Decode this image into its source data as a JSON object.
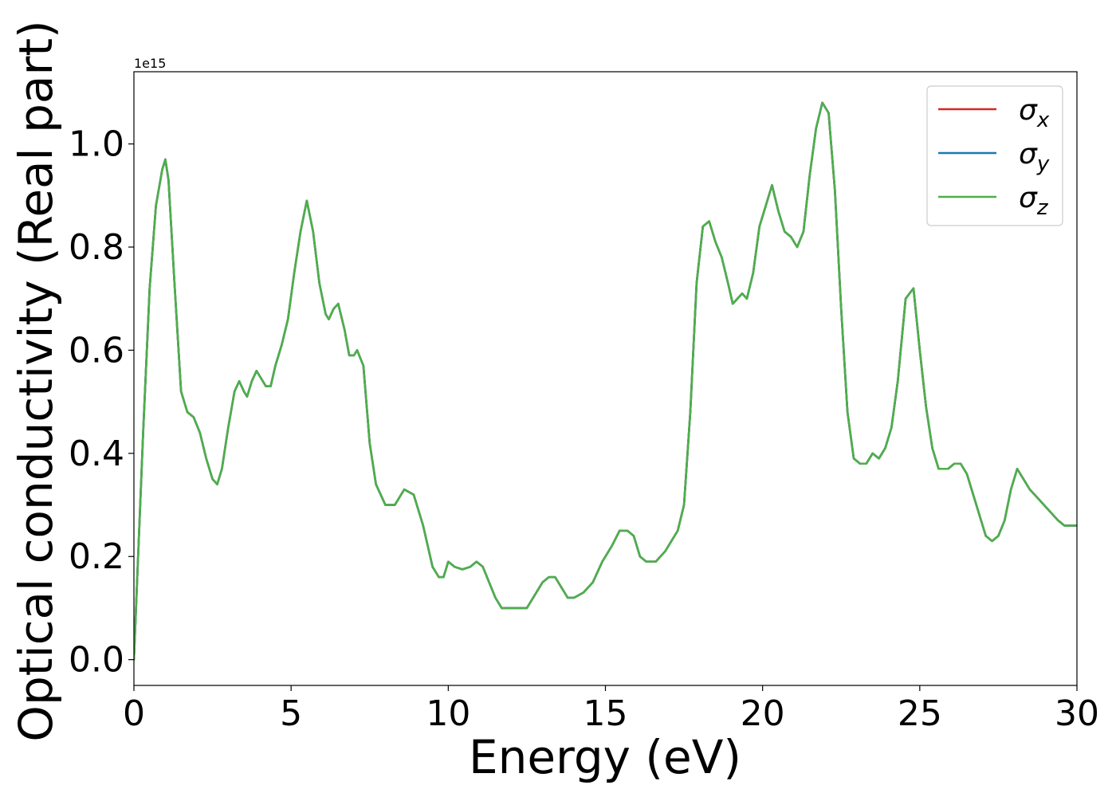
{
  "chart_data": {
    "type": "line",
    "xlabel": "Energy (eV)",
    "ylabel": "Optical conductivity (Real part)",
    "y_offset_label": "1e15",
    "xlim": [
      0,
      30
    ],
    "ylim": [
      -0.05,
      1.14
    ],
    "x_ticks": [
      0,
      5,
      10,
      15,
      20,
      25,
      30
    ],
    "x_tick_labels": [
      "0",
      "5",
      "10",
      "15",
      "20",
      "25",
      "30"
    ],
    "y_ticks": [
      0.0,
      0.2,
      0.4,
      0.6,
      0.8,
      1.0
    ],
    "y_tick_labels": [
      "0.0",
      "0.2",
      "0.4",
      "0.6",
      "0.8",
      "1.0"
    ],
    "grid": false,
    "legend_position": "top-right",
    "series": [
      {
        "name": "σ",
        "subscript": "x",
        "color": "#d62728"
      },
      {
        "name": "σ",
        "subscript": "y",
        "color": "#1f77b4"
      },
      {
        "name": "σ",
        "subscript": "z",
        "color": "#4daf4a"
      }
    ],
    "x": [
      0.0,
      0.1,
      0.3,
      0.5,
      0.7,
      0.9,
      1.0,
      1.1,
      1.3,
      1.5,
      1.7,
      1.9,
      2.1,
      2.3,
      2.5,
      2.65,
      2.8,
      3.0,
      3.2,
      3.35,
      3.5,
      3.6,
      3.75,
      3.9,
      4.0,
      4.2,
      4.35,
      4.5,
      4.7,
      4.9,
      5.1,
      5.3,
      5.5,
      5.7,
      5.9,
      6.1,
      6.2,
      6.35,
      6.5,
      6.7,
      6.85,
      7.0,
      7.1,
      7.3,
      7.5,
      7.7,
      8.0,
      8.3,
      8.6,
      8.9,
      9.2,
      9.5,
      9.7,
      9.85,
      10.0,
      10.2,
      10.45,
      10.7,
      10.9,
      11.1,
      11.3,
      11.5,
      11.7,
      11.9,
      12.2,
      12.5,
      12.8,
      13.0,
      13.2,
      13.4,
      13.6,
      13.8,
      14.0,
      14.3,
      14.6,
      14.9,
      15.2,
      15.45,
      15.7,
      15.9,
      16.1,
      16.3,
      16.6,
      16.9,
      17.1,
      17.3,
      17.5,
      17.7,
      17.9,
      18.1,
      18.3,
      18.5,
      18.7,
      18.9,
      19.05,
      19.2,
      19.35,
      19.5,
      19.7,
      19.9,
      20.1,
      20.3,
      20.5,
      20.7,
      20.9,
      21.1,
      21.3,
      21.5,
      21.7,
      21.9,
      22.1,
      22.3,
      22.5,
      22.7,
      22.9,
      23.1,
      23.3,
      23.5,
      23.7,
      23.9,
      24.1,
      24.3,
      24.55,
      24.8,
      25.0,
      25.2,
      25.4,
      25.6,
      25.9,
      26.1,
      26.3,
      26.5,
      26.7,
      26.9,
      27.1,
      27.3,
      27.5,
      27.7,
      27.9,
      28.1,
      28.3,
      28.5,
      28.8,
      29.1,
      29.4,
      29.6,
      29.8,
      30.0
    ],
    "y": [
      0.0,
      0.15,
      0.45,
      0.72,
      0.88,
      0.95,
      0.97,
      0.93,
      0.72,
      0.52,
      0.48,
      0.47,
      0.44,
      0.39,
      0.35,
      0.34,
      0.37,
      0.45,
      0.52,
      0.54,
      0.52,
      0.51,
      0.54,
      0.56,
      0.55,
      0.53,
      0.53,
      0.57,
      0.61,
      0.66,
      0.75,
      0.83,
      0.89,
      0.83,
      0.73,
      0.67,
      0.66,
      0.68,
      0.69,
      0.64,
      0.59,
      0.59,
      0.6,
      0.57,
      0.42,
      0.34,
      0.3,
      0.3,
      0.33,
      0.32,
      0.26,
      0.18,
      0.16,
      0.16,
      0.19,
      0.18,
      0.175,
      0.18,
      0.19,
      0.18,
      0.15,
      0.12,
      0.1,
      0.1,
      0.1,
      0.1,
      0.13,
      0.15,
      0.16,
      0.16,
      0.14,
      0.12,
      0.12,
      0.13,
      0.15,
      0.19,
      0.22,
      0.25,
      0.25,
      0.24,
      0.2,
      0.19,
      0.19,
      0.21,
      0.23,
      0.25,
      0.3,
      0.48,
      0.73,
      0.84,
      0.85,
      0.81,
      0.78,
      0.73,
      0.69,
      0.7,
      0.71,
      0.7,
      0.75,
      0.84,
      0.88,
      0.92,
      0.87,
      0.83,
      0.82,
      0.8,
      0.83,
      0.94,
      1.03,
      1.08,
      1.06,
      0.91,
      0.68,
      0.48,
      0.39,
      0.38,
      0.38,
      0.4,
      0.39,
      0.41,
      0.45,
      0.54,
      0.7,
      0.72,
      0.6,
      0.49,
      0.41,
      0.37,
      0.37,
      0.38,
      0.38,
      0.36,
      0.32,
      0.28,
      0.24,
      0.23,
      0.24,
      0.27,
      0.33,
      0.37,
      0.35,
      0.33,
      0.31,
      0.29,
      0.27,
      0.26,
      0.26,
      0.26
    ]
  }
}
